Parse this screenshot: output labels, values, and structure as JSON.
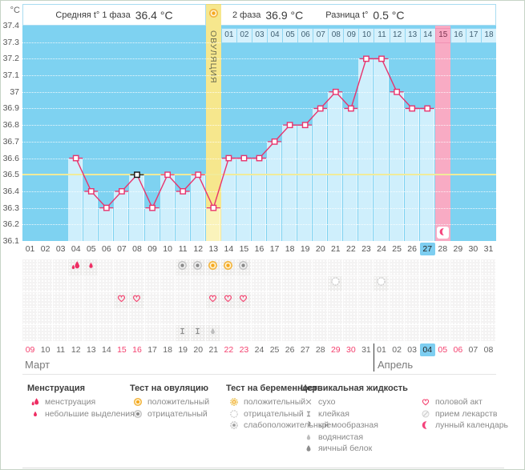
{
  "header": {
    "unit": "°C",
    "phase1_label": "Средняя t° 1 фаза",
    "phase1_value": "36.4 °C",
    "phase2_label": "2 фаза",
    "phase2_value": "36.9 °C",
    "diff_label": "Разница t°",
    "diff_value": "0.5 °C",
    "ovulation_label": "ОВУЛЯЦИЯ"
  },
  "chart_data": {
    "type": "line",
    "title": "Basal body temperature cycle chart",
    "ylabel": "°C",
    "ylim": [
      36.1,
      37.4
    ],
    "grid": true,
    "yticks": [
      "37.4",
      "37.3",
      "37.2",
      "37.1",
      "37",
      "36.9",
      "36.8",
      "36.7",
      "36.6",
      "36.5",
      "36.4",
      "36.3",
      "36.2",
      "36.1"
    ],
    "coverline": 36.5,
    "cycle_days": [
      "01",
      "02",
      "03",
      "04",
      "05",
      "06",
      "07",
      "08",
      "09",
      "10",
      "11",
      "12",
      "13",
      "14",
      "15",
      "16",
      "17",
      "18",
      "19",
      "20",
      "21",
      "22",
      "23",
      "24",
      "25",
      "26",
      "27",
      "28",
      "29",
      "30",
      "31"
    ],
    "temperatures_by_day": [
      null,
      null,
      null,
      36.6,
      36.4,
      36.3,
      36.4,
      36.5,
      36.3,
      36.5,
      36.4,
      36.5,
      36.3,
      36.6,
      36.6,
      36.6,
      36.7,
      36.8,
      36.8,
      36.9,
      37.0,
      36.9,
      37.2,
      37.2,
      37.0,
      36.9,
      36.9,
      null,
      null,
      null,
      null
    ],
    "selected_day": 8,
    "ovulation_day": 13,
    "lunar_calendar_day": 28,
    "current_cycle_day": 27,
    "post_ovulation_labels": [
      "01",
      "02",
      "03",
      "04",
      "05",
      "06",
      "07",
      "08",
      "09",
      "10",
      "11",
      "12",
      "13",
      "14",
      "15",
      "16",
      "17",
      "18"
    ],
    "post_ovulation_highlight": "15"
  },
  "symptom_rows": [
    {
      "name": "menstruation-and-ovulation-tests",
      "entries": {
        "4": "menses-heavy",
        "5": "menses-light",
        "11": "ovu-neg",
        "12": "ovu-neg",
        "13": "ovu-pos",
        "14": "ovu-pos",
        "15": "ovu-neg"
      }
    },
    {
      "name": "pregnancy-tests",
      "entries": {
        "21": "preg-neg",
        "24": "preg-neg"
      }
    },
    {
      "name": "intercourse",
      "entries": {
        "7": "intercourse",
        "8": "intercourse",
        "13": "intercourse",
        "14": "intercourse",
        "15": "intercourse"
      }
    },
    {
      "name": "medications",
      "entries": {}
    },
    {
      "name": "cervical-fluid",
      "entries": {
        "11": "cf-sticky",
        "12": "cf-sticky",
        "13": "cf-watery"
      }
    }
  ],
  "calendar": {
    "dates": [
      "09",
      "10",
      "11",
      "12",
      "13",
      "14",
      "15",
      "16",
      "17",
      "18",
      "19",
      "20",
      "21",
      "22",
      "23",
      "24",
      "25",
      "26",
      "27",
      "28",
      "29",
      "30",
      "31",
      "01",
      "02",
      "03",
      "04",
      "05",
      "06",
      "07",
      "08"
    ],
    "weekend_indices": [
      0,
      6,
      7,
      13,
      14,
      20,
      21,
      27,
      28
    ],
    "today_index": 26,
    "april_start_index": 23,
    "month_march": "Март",
    "month_april": "Апрель"
  },
  "legend": {
    "groups": [
      {
        "title": "Менструация",
        "items": [
          {
            "icon": "menses-heavy",
            "label": "менструация"
          },
          {
            "icon": "menses-light",
            "label": "небольшие выделения"
          }
        ]
      },
      {
        "title": "Тест на овуляцию",
        "items": [
          {
            "icon": "ovu-pos",
            "label": "положительный"
          },
          {
            "icon": "ovu-neg",
            "label": "отрицательный"
          }
        ]
      },
      {
        "title": "Тест на беременность",
        "items": [
          {
            "icon": "preg-pos",
            "label": "положительный"
          },
          {
            "icon": "preg-neg",
            "label": "отрицательный"
          },
          {
            "icon": "preg-weak",
            "label": "слабоположительный"
          }
        ]
      },
      {
        "title": "Цервикальная жидкость",
        "items": [
          {
            "icon": "cf-dry",
            "label": "сухо"
          },
          {
            "icon": "cf-sticky",
            "label": "клейкая"
          },
          {
            "icon": "cf-creamy",
            "label": "кремообразная"
          },
          {
            "icon": "cf-watery",
            "label": "водянистая"
          },
          {
            "icon": "cf-eggwhite",
            "label": "яичный белок"
          }
        ]
      },
      {
        "title": "",
        "items": [
          {
            "icon": "intercourse",
            "label": "половой акт"
          },
          {
            "icon": "pills",
            "label": "прием лекарств"
          },
          {
            "icon": "lunar",
            "label": "лунный календарь"
          }
        ]
      }
    ]
  },
  "colors": {
    "chart_bg": "#7ed2f1",
    "column_fill": "#cfeffc",
    "temp_line": "#e8336d",
    "selected_marker": "#111111",
    "coverline": "#f1eb9a",
    "ovulation_column": "#f6e78d",
    "ovulation_column_light": "#faf3bb",
    "lunar_column": "#f8abc4",
    "day_highlight": "#7dcef1",
    "weekend_text": "#f4416f",
    "positive_test": "#f6a81f",
    "negative_test": "#8a8a8a",
    "heart": "#f4406e",
    "moon": "#f4447c",
    "menses": "#ee2d63"
  }
}
